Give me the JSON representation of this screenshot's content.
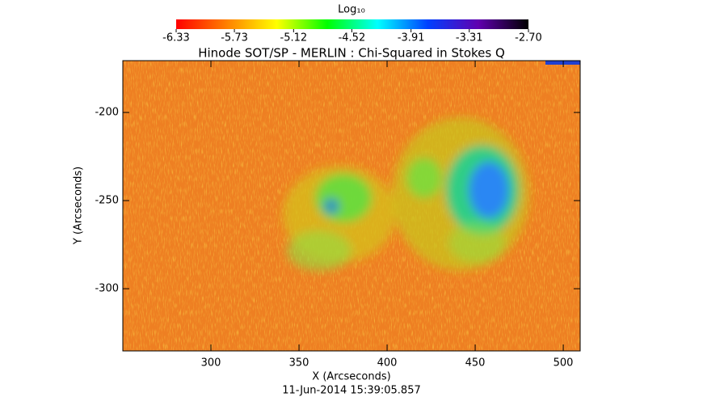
{
  "chart_data": {
    "type": "heatmap",
    "title": "Hinode SOT/SP - MERLIN : Chi-Squared in Stokes Q",
    "xlabel": "X (Arcseconds)",
    "ylabel": "Y (Arcseconds)",
    "annotation": "11-Jun-2014 15:39:05.857",
    "xlim": [
      250,
      509.6
    ],
    "ylim": [
      -335.3,
      -170.6
    ],
    "xticks": [
      300,
      350,
      400,
      450,
      500
    ],
    "yticks": [
      -200,
      -250,
      -300
    ],
    "colorbar": {
      "label": "Log₁₀",
      "clim": [
        -6.33,
        -2.7
      ],
      "ticks": [
        -6.33,
        -5.73,
        -5.12,
        -4.52,
        -3.91,
        -3.31,
        {
          "value": -2.7,
          "label": "-2.70"
        }
      ],
      "colormap": [
        "#ff0000",
        "#ff7f00",
        "#ffff00",
        "#00ff00",
        "#00ffff",
        "#0040ff",
        "#6000b0",
        "#000000"
      ]
    }
  }
}
